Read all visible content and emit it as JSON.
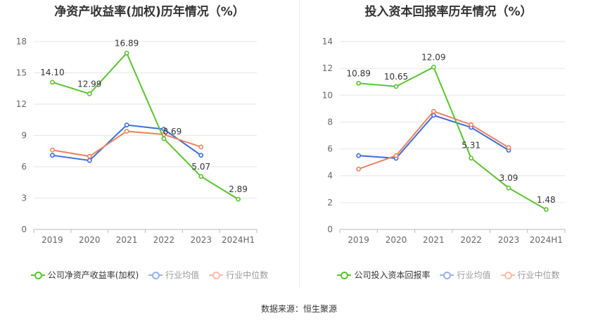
{
  "source_label": "数据来源：恒生聚源",
  "chart_data": [
    {
      "type": "line",
      "title": "净资产收益率(加权)历年情况（%）",
      "categories": [
        "2019",
        "2020",
        "2021",
        "2022",
        "2023",
        "2024H1"
      ],
      "ylim": [
        0,
        18
      ],
      "yticks": [
        0,
        3,
        6,
        9,
        12,
        15,
        18
      ],
      "grid": true,
      "legend_position": "bottom",
      "series": [
        {
          "name": "公司净资产收益率(加权)",
          "color": "#5cc22e",
          "values": [
            14.1,
            12.99,
            16.89,
            8.69,
            5.07,
            2.89
          ],
          "labels": [
            "14.10",
            "12.99",
            "16.89",
            "8.69",
            "5.07",
            "2.89"
          ],
          "dimmed": false
        },
        {
          "name": "行业均值",
          "color": "#3a6fd8",
          "values": [
            7.1,
            6.6,
            10.0,
            9.6,
            7.1,
            null
          ],
          "dimmed": true
        },
        {
          "name": "行业中位数",
          "color": "#f08160",
          "values": [
            7.6,
            7.0,
            9.4,
            9.1,
            7.9,
            null
          ],
          "dimmed": true
        }
      ]
    },
    {
      "type": "line",
      "title": "投入资本回报率历年情况（%）",
      "categories": [
        "2019",
        "2020",
        "2021",
        "2022",
        "2023",
        "2024H1"
      ],
      "ylim": [
        0,
        14
      ],
      "yticks": [
        0,
        2,
        4,
        6,
        8,
        10,
        12,
        14
      ],
      "grid": true,
      "legend_position": "bottom",
      "series": [
        {
          "name": "公司投入资本回报率",
          "color": "#5cc22e",
          "values": [
            10.89,
            10.65,
            12.09,
            5.31,
            3.09,
            1.48
          ],
          "labels": [
            "10.89",
            "10.65",
            "12.09",
            "5.31",
            "3.09",
            "1.48"
          ],
          "dimmed": false
        },
        {
          "name": "行业均值",
          "color": "#3a6fd8",
          "values": [
            5.5,
            5.3,
            8.5,
            7.6,
            5.9,
            null
          ],
          "dimmed": true
        },
        {
          "name": "行业中位数",
          "color": "#f08160",
          "values": [
            4.5,
            5.5,
            8.8,
            7.8,
            6.1,
            null
          ],
          "dimmed": true
        }
      ]
    }
  ]
}
